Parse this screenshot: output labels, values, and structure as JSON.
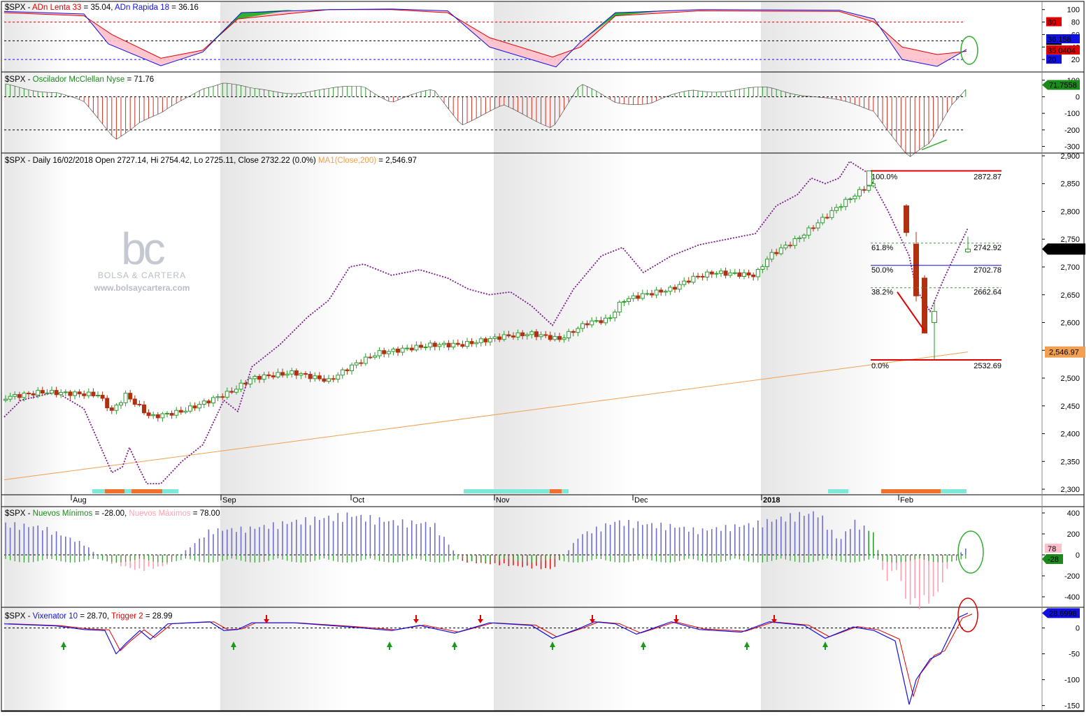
{
  "panels": {
    "adn": {
      "title_prefix": "$SPX - ",
      "s1": "ADn Lenta 33",
      "s1v": " = 35.04, ",
      "s2": "ADn Rapida 18",
      "s2v": " = 36.16",
      "ticks": [
        "100",
        "80",
        "60",
        "40",
        "20"
      ],
      "tick_values": [
        100,
        80,
        60,
        40,
        20
      ],
      "badges": [
        {
          "text": "80",
          "color": "#e00000",
          "fg": "#000"
        },
        {
          "text": "50",
          "color": "#000000",
          "fg": "#fff"
        },
        {
          "text": "36.158",
          "color": "#1010e0",
          "fg": "#fff"
        },
        {
          "text": "35.0404",
          "color": "#e00000",
          "fg": "#000"
        },
        {
          "text": "20",
          "color": "#1010e0",
          "fg": "#fff"
        }
      ]
    },
    "mcc": {
      "title": "$SPX - ",
      "s1": "Oscilador McClellan Nyse",
      "s1v": " = 71.76",
      "ticks": [
        "100",
        "0",
        "-100",
        "-200",
        "-300"
      ],
      "tick_values": [
        100,
        0,
        -100,
        -200,
        -300
      ],
      "badge": "71.7558"
    },
    "price": {
      "title": "$SPX - Daily 16/02/2018 Open 2727.14, Hi 2754.42, Lo 2725.11, Close 2732.22 (0.0%) ",
      "ma_label": "MA1(Close,200)",
      "ma_value": " = 2,546.97",
      "ticks": [
        "2,900",
        "2,850",
        "2,800",
        "2,750",
        "2,700",
        "2,650",
        "2,600",
        "2,550",
        "2,500",
        "2,450",
        "2,400",
        "2,350",
        "2,300"
      ],
      "tick_values": [
        2900,
        2850,
        2800,
        2750,
        2700,
        2650,
        2600,
        2550,
        2500,
        2450,
        2400,
        2350,
        2300
      ],
      "last_badge": "2,732.22",
      "ma_badge": "2,546.97",
      "months": [
        "Aug",
        "Sep",
        "Oct",
        "Nov",
        "Dec",
        "2018",
        "Feb"
      ],
      "fib": [
        {
          "pct": "100.0%",
          "value": "2872.87",
          "level": 2872.87,
          "color": "#e00000"
        },
        {
          "pct": "61.8%",
          "value": "2742.92",
          "level": 2742.92,
          "color": "#30a030"
        },
        {
          "pct": "50.0%",
          "value": "2702.78",
          "level": 2702.78,
          "color": "#1010e0"
        },
        {
          "pct": "38.2%",
          "value": "2662.64",
          "level": 2662.64,
          "color": "#30a030"
        },
        {
          "pct": "0.0%",
          "value": "2532.69",
          "level": 2532.69,
          "color": "#e00000"
        }
      ]
    },
    "nm": {
      "title": "$SPX - ",
      "s1": "Nuevos Mínimos",
      "s1v": " = -28.00, ",
      "s2": "Nuevos Máximos",
      "s2v": " = 78.00",
      "ticks": [
        "400",
        "200",
        "0",
        "-200",
        "-400"
      ],
      "tick_values": [
        400,
        200,
        0,
        -200,
        -400
      ],
      "badge_hi": "78",
      "badge_lo": "-28"
    },
    "vix": {
      "title": "$SPX - ",
      "s1": "Vixenator 10",
      "s1v": " = 28.70, ",
      "s2": "Trigger 2",
      "s2v": " = 28.99",
      "ticks": [
        "0",
        "-50",
        "-100",
        "-150"
      ],
      "tick_values": [
        0,
        -50,
        -100,
        -150
      ],
      "badge": "28.6998"
    }
  },
  "watermark": {
    "logo": "bc",
    "brand": "BOLSA & CARTERA",
    "site": "www.bolsaycartera.com"
  },
  "colors": {
    "up": "#2e9a2e",
    "down": "#b03010",
    "ma200": "#f0a050",
    "breadth": "#7a1a8a",
    "adn_fill_neg": "#ffc0cb",
    "adn_fill_pos": "#30b030",
    "blue": "#1010e0",
    "red": "#e00000",
    "hilo_pos": "#7070c8",
    "hilo_neg": "#ff9fb0"
  },
  "chart_data": {
    "type": "candlestick",
    "series": [
      {
        "name": "SPX",
        "type": "candlestick",
        "x": [
          "2018-01-26",
          "2018-02-02",
          "2018-02-05",
          "2018-02-08",
          "2018-02-09",
          "2018-02-16"
        ],
        "open": [
          2847,
          2810,
          2741,
          2680,
          2600,
          2727.14
        ],
        "high": [
          2872.87,
          2813,
          2763,
          2685,
          2638,
          2754.42
        ],
        "low": [
          2845,
          2755,
          2638,
          2580,
          2532.69,
          2725.11
        ],
        "close": [
          2872.87,
          2762,
          2648,
          2581,
          2620,
          2732.22
        ]
      },
      {
        "name": "MA1(Close,200)",
        "type": "line",
        "last": 2546.97
      }
    ],
    "indicators": {
      "ADn Lenta 33": 35.04,
      "ADn Rapida 18": 36.16,
      "Oscilador McClellan Nyse": 71.76,
      "Nuevos Mínimos": -28,
      "Nuevos Máximos": 78,
      "Vixenator 10": 28.7,
      "Trigger 2": 28.99
    },
    "xlabel": "",
    "ylabel": "",
    "ylim": [
      2290,
      2905
    ],
    "grid": false
  }
}
